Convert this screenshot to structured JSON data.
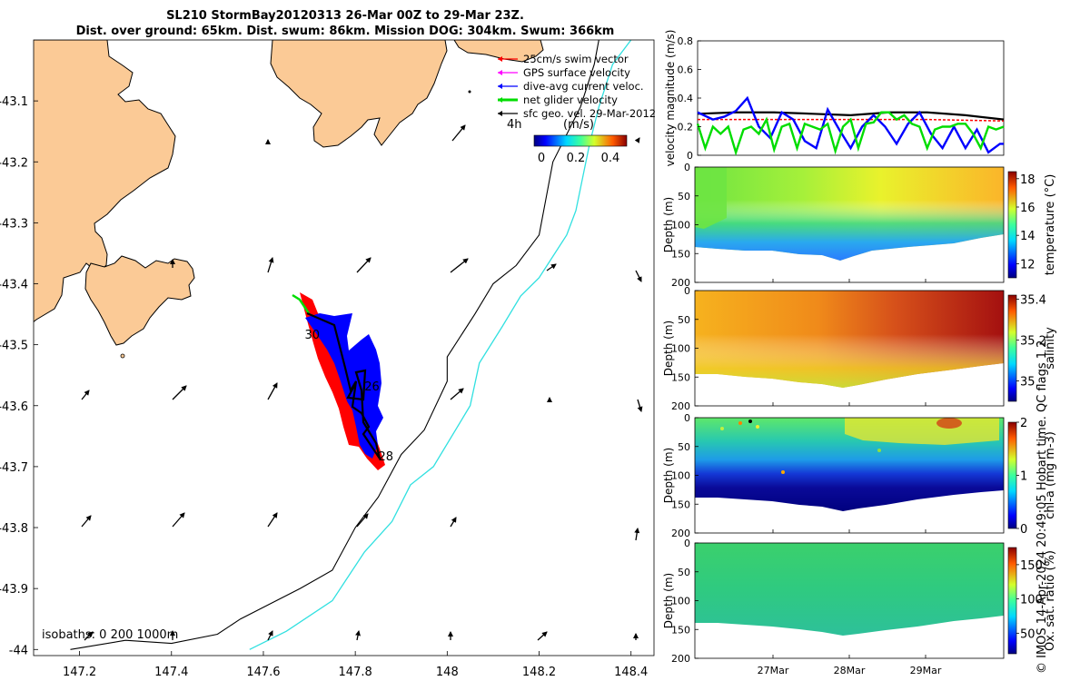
{
  "header": {
    "line1": "SL210 StormBay20120313 26-Mar 00Z to 29-Mar 23Z.",
    "line2": "Dist. over ground: 65km. Dist. swum: 86km. Mission DOG: 304km. Swum: 366km"
  },
  "stamp": "© IMOS 14-Apr-2024 20:49:05 Hobart time. QC flags 1  2",
  "chart_data": [
    {
      "type": "map",
      "xlim": [
        147.1,
        148.45
      ],
      "ylim": [
        -44.01,
        -43.0
      ],
      "xticks": [
        "147.2",
        "147.4",
        "147.6",
        "147.8",
        "148",
        "148.2",
        "148.4"
      ],
      "yticks": [
        "-43.1",
        "-43.2",
        "-43.3",
        "-43.4",
        "-43.5",
        "-43.6",
        "-43.7",
        "-43.8",
        "-43.9",
        "-44"
      ],
      "legend": [
        {
          "label": "25cm/s swim vector",
          "color": "#ff0000"
        },
        {
          "label": "GPS surface velocity",
          "color": "#ff00ff"
        },
        {
          "label": "dive-avg current veloc.",
          "color": "#0000ff"
        },
        {
          "label": "net glider velocity",
          "color": "#00dd00"
        },
        {
          "label": "sfc geo. vel. 29-Mar-2012",
          "color": "#000000"
        }
      ],
      "scale_label": "4h",
      "colorbar": {
        "unit": "(m/s)",
        "ticks": [
          "0",
          "0.2",
          "0.4"
        ]
      },
      "isobath_label": "isobaths: 0   200  1000m",
      "day_labels": [
        {
          "text": "30",
          "lon": 147.69,
          "lat": -43.49
        },
        {
          "text": "26",
          "lon": 147.82,
          "lat": -43.575
        },
        {
          "text": "28",
          "lon": 147.85,
          "lat": -43.69
        }
      ],
      "isobath_200m": [
        [
          147.18,
          -44.0
        ],
        [
          147.3,
          -43.985
        ],
        [
          147.4,
          -43.99
        ],
        [
          147.5,
          -43.975
        ],
        [
          147.55,
          -43.95
        ],
        [
          147.68,
          -43.9
        ],
        [
          147.75,
          -43.87
        ],
        [
          147.8,
          -43.8
        ],
        [
          147.85,
          -43.75
        ],
        [
          147.9,
          -43.68
        ],
        [
          147.95,
          -43.64
        ],
        [
          148.0,
          -43.56
        ],
        [
          148.0,
          -43.52
        ],
        [
          148.06,
          -43.45
        ],
        [
          148.1,
          -43.4
        ],
        [
          148.15,
          -43.37
        ],
        [
          148.2,
          -43.32
        ],
        [
          148.23,
          -43.2
        ],
        [
          148.29,
          -43.11
        ],
        [
          148.32,
          -43.04
        ],
        [
          148.33,
          -43.0
        ]
      ],
      "isobath_1000m": [
        [
          147.57,
          -44.0
        ],
        [
          147.65,
          -43.97
        ],
        [
          147.75,
          -43.92
        ],
        [
          147.82,
          -43.84
        ],
        [
          147.88,
          -43.79
        ],
        [
          147.92,
          -43.73
        ],
        [
          147.97,
          -43.7
        ],
        [
          148.05,
          -43.6
        ],
        [
          148.07,
          -43.53
        ],
        [
          148.12,
          -43.47
        ],
        [
          148.16,
          -43.42
        ],
        [
          148.2,
          -43.39
        ],
        [
          148.26,
          -43.32
        ],
        [
          148.28,
          -43.28
        ],
        [
          148.31,
          -43.17
        ],
        [
          148.33,
          -43.11
        ],
        [
          148.36,
          -43.04
        ],
        [
          148.4,
          -43.0
        ]
      ]
    },
    {
      "type": "line",
      "ylabel": "velocity magnitude (m/s)",
      "ylim": [
        0,
        0.8
      ],
      "yticks": [
        "0",
        "0.2",
        "0.4",
        "0.6",
        "0.8"
      ],
      "xlim": [
        0,
        4
      ],
      "series": [
        {
          "color": "#000000",
          "x": [
            0,
            0.5,
            1,
            1.5,
            2,
            2.5,
            3,
            3.5,
            4
          ],
          "values": [
            0.29,
            0.3,
            0.3,
            0.29,
            0.28,
            0.3,
            0.3,
            0.28,
            0.25
          ]
        },
        {
          "color": "#ff0000",
          "x": [
            0,
            1,
            2,
            3,
            4
          ],
          "values": [
            0.25,
            0.25,
            0.25,
            0.25,
            0.24
          ]
        },
        {
          "color": "#0000ff",
          "x": [
            0,
            0.2,
            0.35,
            0.5,
            0.65,
            0.8,
            0.95,
            1.1,
            1.25,
            1.4,
            1.55,
            1.7,
            1.85,
            2.0,
            2.15,
            2.3,
            2.45,
            2.6,
            2.75,
            2.9,
            3.05,
            3.2,
            3.35,
            3.5,
            3.65,
            3.8,
            3.95,
            4.0
          ],
          "values": [
            0.3,
            0.25,
            0.27,
            0.31,
            0.4,
            0.2,
            0.12,
            0.3,
            0.25,
            0.1,
            0.05,
            0.32,
            0.18,
            0.05,
            0.2,
            0.28,
            0.2,
            0.08,
            0.22,
            0.3,
            0.15,
            0.05,
            0.2,
            0.05,
            0.18,
            0.02,
            0.08,
            0.08
          ]
        },
        {
          "color": "#00dd00",
          "x": [
            0,
            0.1,
            0.2,
            0.3,
            0.4,
            0.5,
            0.6,
            0.7,
            0.8,
            0.9,
            1.0,
            1.1,
            1.2,
            1.3,
            1.4,
            1.5,
            1.6,
            1.7,
            1.8,
            1.9,
            2.0,
            2.1,
            2.2,
            2.3,
            2.4,
            2.5,
            2.6,
            2.7,
            2.8,
            2.9,
            3.0,
            3.1,
            3.2,
            3.3,
            3.4,
            3.5,
            3.6,
            3.7,
            3.8,
            3.9,
            4.0
          ],
          "values": [
            0.22,
            0.05,
            0.2,
            0.15,
            0.2,
            0.02,
            0.18,
            0.2,
            0.15,
            0.25,
            0.04,
            0.2,
            0.22,
            0.05,
            0.22,
            0.2,
            0.18,
            0.22,
            0.03,
            0.2,
            0.25,
            0.05,
            0.22,
            0.23,
            0.3,
            0.3,
            0.25,
            0.28,
            0.22,
            0.2,
            0.05,
            0.18,
            0.2,
            0.2,
            0.22,
            0.22,
            0.15,
            0.05,
            0.2,
            0.18,
            0.2
          ]
        }
      ]
    },
    {
      "type": "heatmap",
      "ylabel": "Depth (m)",
      "ylim": [
        0,
        200
      ],
      "yticks": [
        "0",
        "50",
        "100",
        "150",
        "200"
      ],
      "colorbar": {
        "label": "temperature (°C)",
        "ticks": [
          "12",
          "14",
          "16",
          "18"
        ],
        "range": [
          11,
          18.5
        ]
      }
    },
    {
      "type": "heatmap",
      "ylabel": "Depth (m)",
      "ylim": [
        0,
        200
      ],
      "yticks": [
        "0",
        "50",
        "100",
        "150",
        "200"
      ],
      "colorbar": {
        "label": "salinity",
        "ticks": [
          "35",
          "35.2",
          "35.4"
        ],
        "range": [
          34.9,
          35.42
        ]
      }
    },
    {
      "type": "heatmap",
      "ylabel": "Depth (m)",
      "ylim": [
        0,
        200
      ],
      "yticks": [
        "0",
        "50",
        "100",
        "150",
        "200"
      ],
      "colorbar": {
        "label": "chl-a (mg m-3)",
        "ticks": [
          "0",
          "1",
          "2"
        ],
        "range": [
          0,
          2
        ]
      }
    },
    {
      "type": "heatmap",
      "ylabel": "Depth (m)",
      "ylim": [
        0,
        200
      ],
      "yticks": [
        "0",
        "50",
        "100",
        "150",
        "200"
      ],
      "xticks": [
        "27Mar",
        "28Mar",
        "29Mar"
      ],
      "colorbar": {
        "label": "Ox. sat. ratio (%)",
        "ticks": [
          "50",
          "100",
          "150"
        ],
        "range": [
          20,
          175
        ]
      }
    }
  ]
}
